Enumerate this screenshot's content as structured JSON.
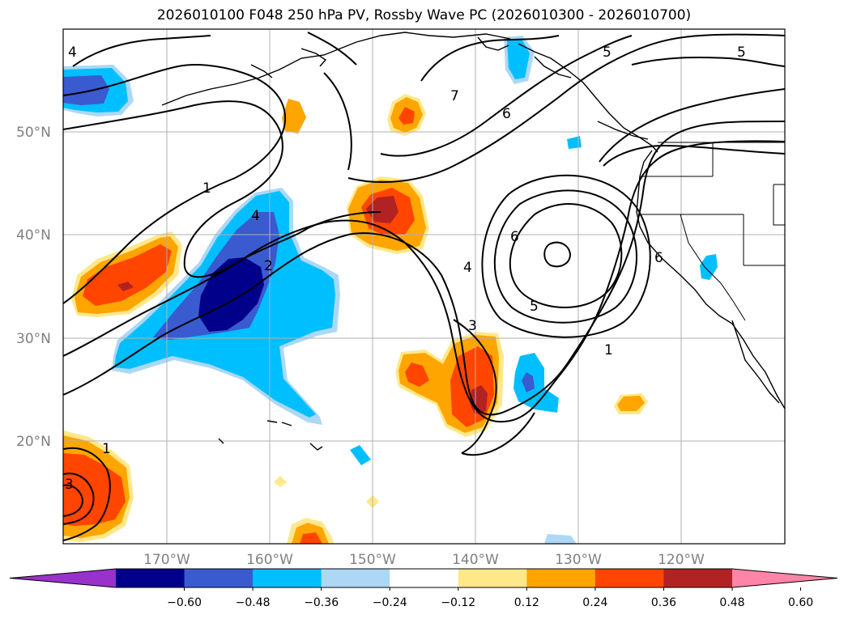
{
  "title": "2026010100 F048 250 hPa PV, Rossby Wave PC (2026010300 - 2026010700)",
  "lat_labels": [
    "50°N",
    "40°N",
    "30°N",
    "20°N"
  ],
  "lon_labels": [
    "170°W",
    "160°W",
    "150°W",
    "140°W",
    "130°W",
    "120°W"
  ],
  "contour_labels": [
    "4",
    "1",
    "7",
    "6",
    "5",
    "4",
    "2",
    "6",
    "4",
    "5",
    "1",
    "3",
    "1",
    "3",
    "5",
    "6"
  ],
  "colorbar": {
    "ticks": [
      "−0.60",
      "−0.48",
      "−0.36",
      "−0.24",
      "−0.12",
      "0.12",
      "0.24",
      "0.36",
      "0.48",
      "0.60"
    ],
    "colors": [
      "#9932cc",
      "#00008b",
      "#3a5ad0",
      "#00bfff",
      "#add8f5",
      "#ffffff",
      "#ffe88a",
      "#ffa500",
      "#ff4500",
      "#b22222",
      "#ff85a8"
    ]
  },
  "colors": {
    "neg_strong": "#00008b",
    "neg_mid": "#3a5ad0",
    "neg_light": "#00bfff",
    "neg_faint": "#add8f5",
    "pos_faint": "#ffe88a",
    "pos_light": "#ffa500",
    "pos_mid": "#ff4500",
    "pos_strong": "#b22222"
  }
}
